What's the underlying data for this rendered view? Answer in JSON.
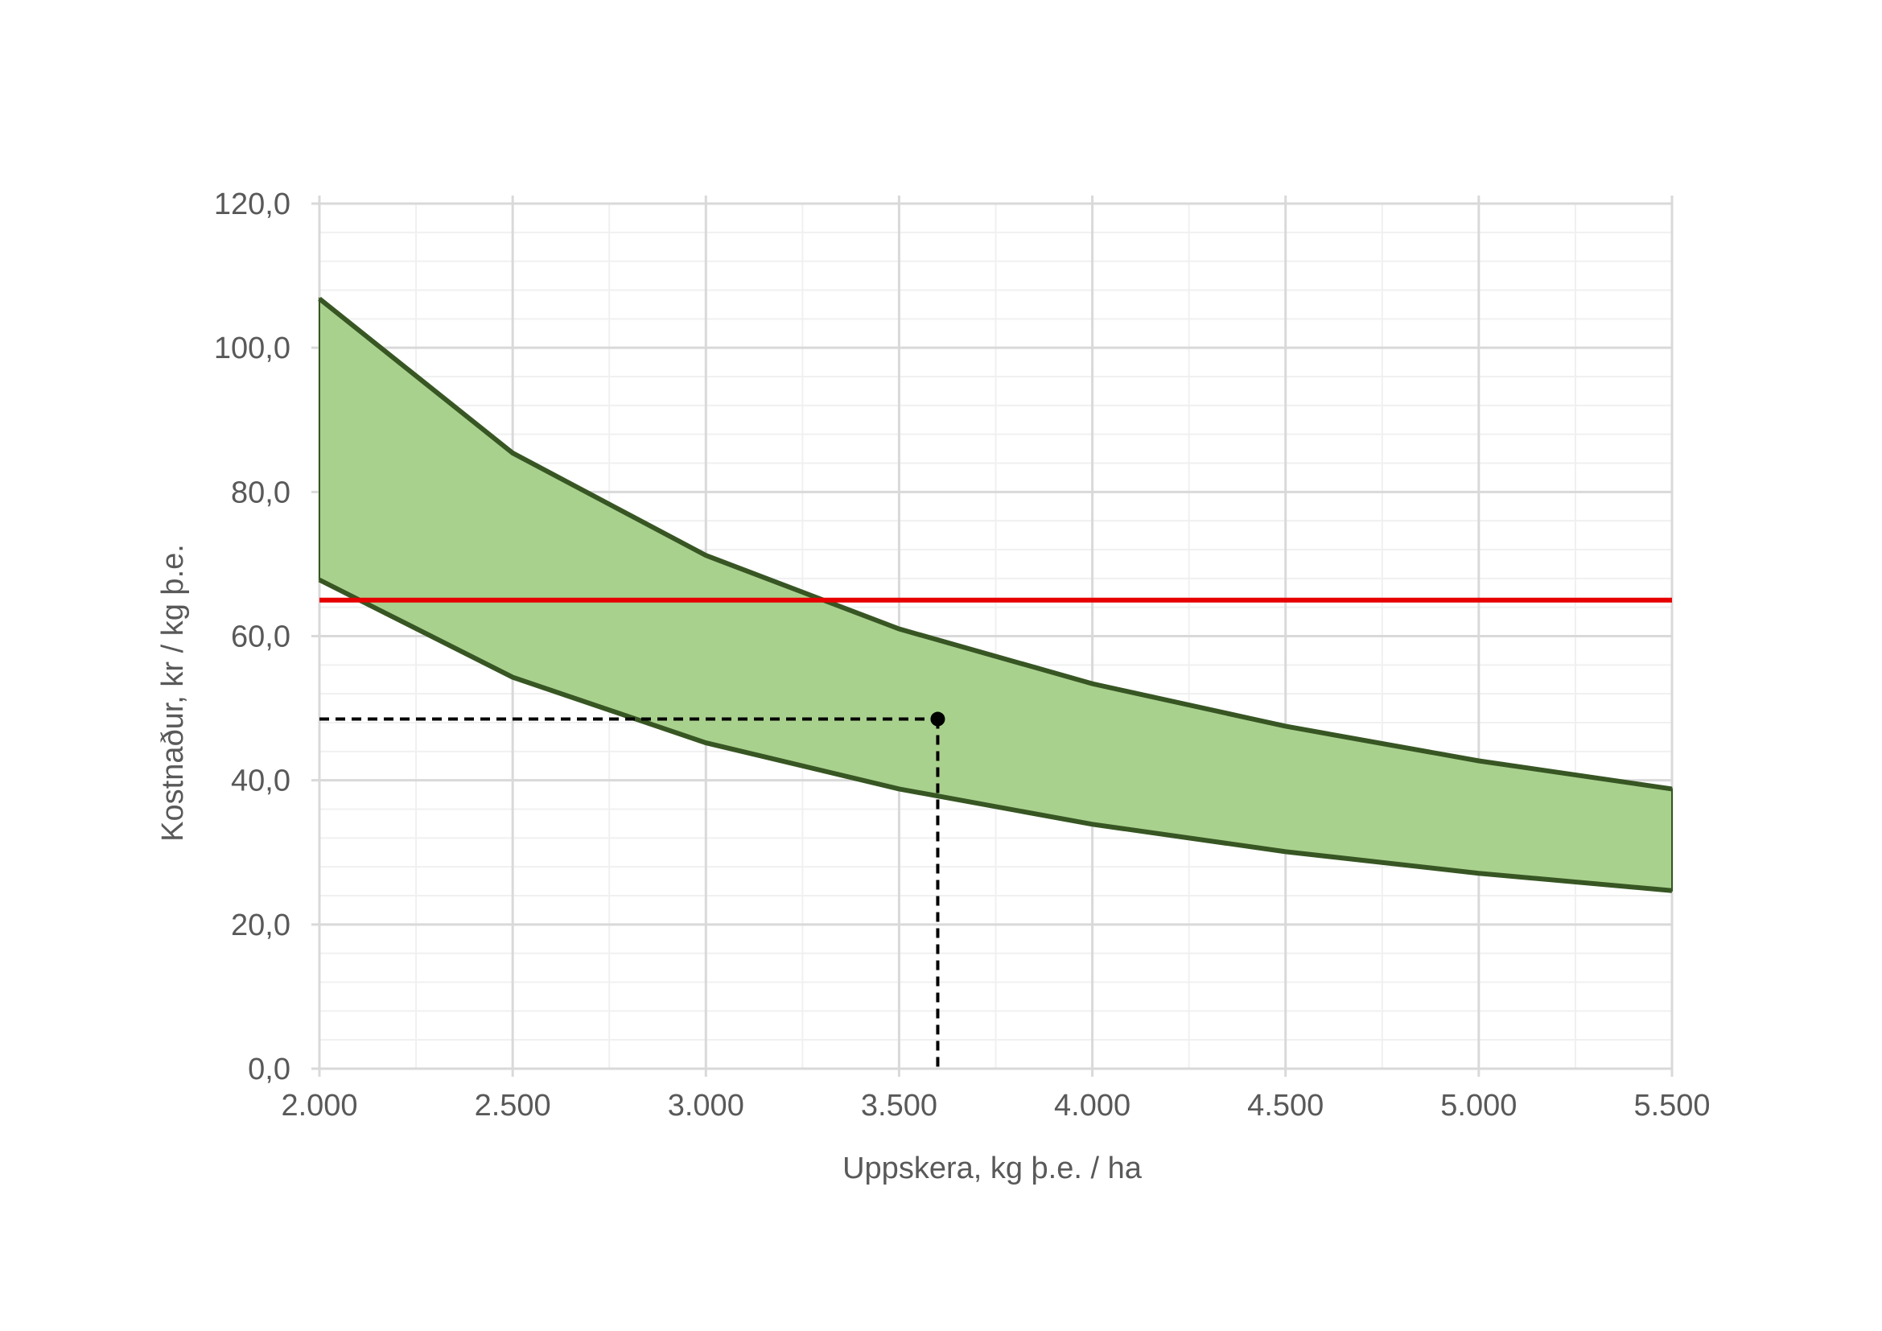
{
  "chart_data": {
    "type": "area",
    "title": "",
    "xlabel": "Uppskera, kg  þ.e. / ha",
    "ylabel": "Kostnaður, kr / kg þ.e.",
    "xlim": [
      2000,
      5500
    ],
    "ylim": [
      0,
      120
    ],
    "x_ticks": [
      2000,
      2500,
      3000,
      3500,
      4000,
      4500,
      5000,
      5500
    ],
    "x_tick_labels": [
      "2.000",
      "2.500",
      "3.000",
      "3.500",
      "4.000",
      "4.500",
      "5.000",
      "5.500"
    ],
    "y_ticks": [
      0,
      20,
      40,
      60,
      80,
      100,
      120
    ],
    "y_tick_labels": [
      "0,0",
      "20,0",
      "40,0",
      "60,0",
      "80,0",
      "100,0",
      "120,0"
    ],
    "grid": true,
    "x": [
      2000,
      2500,
      3000,
      3500,
      4000,
      4500,
      5000,
      5500
    ],
    "series": [
      {
        "values": [
          106.8,
          85.4,
          71.2,
          61.0,
          53.4,
          47.5,
          42.7,
          38.8
        ]
      },
      {
        "values": [
          67.8,
          54.3,
          45.2,
          38.8,
          33.9,
          30.1,
          27.1,
          24.7
        ]
      }
    ],
    "reference_line": {
      "y": 65,
      "color": "#e60000"
    },
    "marker_point": {
      "x": 3600,
      "y": 48.5
    },
    "colors": {
      "band_fill": "#a9d18e",
      "band_stroke": "#375623",
      "grid_major": "#d9d9d9",
      "grid_minor": "#f0f0f0",
      "text": "#595959",
      "marker": "#000000"
    }
  }
}
